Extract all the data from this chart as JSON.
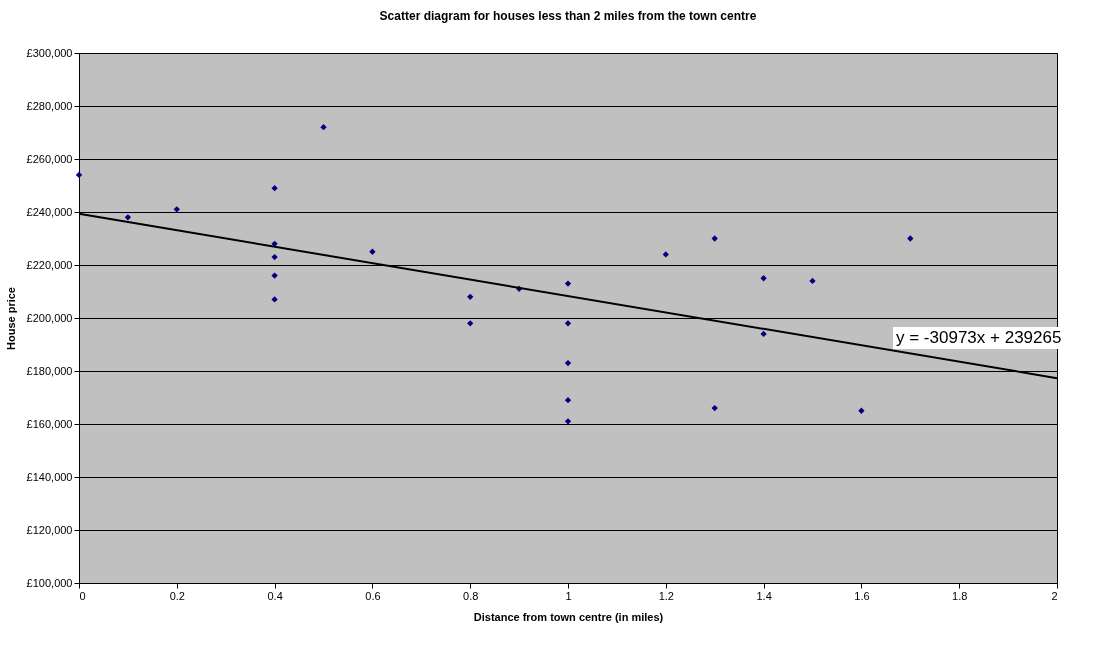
{
  "chart_data": {
    "type": "scatter",
    "title": "Scatter diagram for houses less than 2 miles from the town centre",
    "xlabel": "Distance from town centre (in miles)",
    "ylabel": "House price",
    "x": [
      0,
      0.1,
      0.2,
      0.4,
      0.4,
      0.4,
      0.4,
      0.4,
      0.5,
      0.6,
      0.8,
      0.8,
      0.9,
      1,
      1,
      1,
      1,
      1,
      1.2,
      1.3,
      1.3,
      1.4,
      1.4,
      1.5,
      1.6,
      1.7
    ],
    "series": [
      {
        "color": "#000080",
        "marker": "diamond",
        "values": [
          254000,
          238000,
          241000,
          249000,
          228000,
          223000,
          216000,
          207000,
          272000,
          225000,
          208000,
          198000,
          211000,
          213000,
          198000,
          183000,
          169000,
          161000,
          224000,
          230000,
          166000,
          215000,
          194000,
          214000,
          165000,
          230000
        ]
      },
      {
        "type": "line",
        "color": "#000000",
        "x": [
          0,
          2
        ],
        "values": [
          239300,
          177300
        ]
      }
    ],
    "annotations": [
      "y = -30973x + 239265"
    ],
    "xlim": [
      0,
      2
    ],
    "xticks": [
      0,
      0.2,
      0.4,
      0.6,
      0.8,
      1,
      1.2,
      1.4,
      1.6,
      1.8,
      2
    ],
    "ylim": [
      100000,
      300000
    ],
    "yticks": [
      {
        "value": 100000,
        "label": "£100,000"
      },
      {
        "value": 120000,
        "label": "£120,000"
      },
      {
        "value": 140000,
        "label": "£140,000"
      },
      {
        "value": 160000,
        "label": "£160,000"
      },
      {
        "value": 180000,
        "label": "£180,000"
      },
      {
        "value": 200000,
        "label": "£200,000"
      },
      {
        "value": 220000,
        "label": "£220,000"
      },
      {
        "value": 240000,
        "label": "£240,000"
      },
      {
        "value": 260000,
        "label": "£260,000"
      },
      {
        "value": 280000,
        "label": "£280,000"
      },
      {
        "value": 300000,
        "label": "£300,000"
      }
    ],
    "grid": "y"
  }
}
